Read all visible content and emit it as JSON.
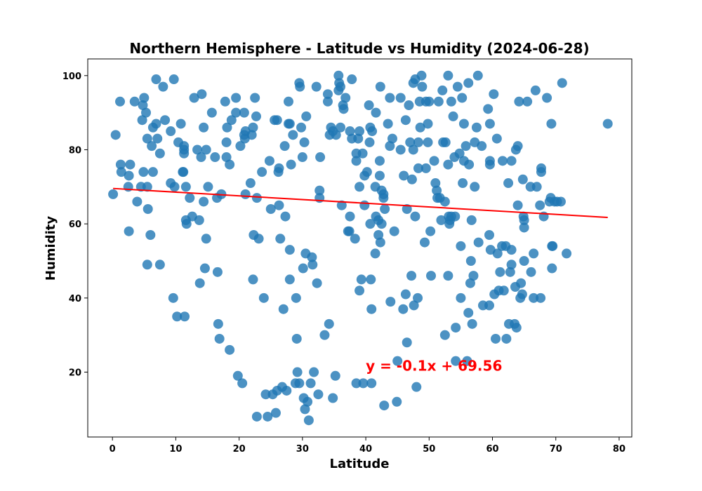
{
  "chart_data": {
    "type": "scatter",
    "title": "Northern Hemisphere - Latitude vs Humidity (2024-06-28)",
    "xlabel": "Latitude",
    "ylabel": "Humidity",
    "xlim": [
      -3.9,
      82
    ],
    "ylim": [
      2.5,
      104.5
    ],
    "xticks": [
      0,
      10,
      20,
      30,
      40,
      50,
      60,
      70,
      80
    ],
    "yticks": [
      20,
      40,
      60,
      80,
      100
    ],
    "grid": false,
    "marker_color": "#1f77b4",
    "regression": {
      "slope": -0.1,
      "intercept": 69.56,
      "x_range": [
        0.1,
        78.2
      ],
      "color": "#ff0000",
      "equation": "y = -0.1x + 69.56",
      "equation_x": 40,
      "equation_y": 20
    },
    "points": [
      [
        0.1,
        68
      ],
      [
        0.5,
        84
      ],
      [
        1.2,
        93
      ],
      [
        1.3,
        76
      ],
      [
        1.4,
        74
      ],
      [
        2.5,
        70
      ],
      [
        2.6,
        73
      ],
      [
        2.8,
        76
      ],
      [
        2.6,
        58
      ],
      [
        3.5,
        93
      ],
      [
        3.9,
        66
      ],
      [
        4.5,
        70
      ],
      [
        4.8,
        92
      ],
      [
        4.9,
        74
      ],
      [
        4.7,
        88
      ],
      [
        5.0,
        94
      ],
      [
        5.3,
        90
      ],
      [
        5.5,
        83
      ],
      [
        5.5,
        70
      ],
      [
        5.6,
        64
      ],
      [
        5.5,
        49
      ],
      [
        6.0,
        57
      ],
      [
        6.2,
        81
      ],
      [
        6.4,
        86
      ],
      [
        6.4,
        74
      ],
      [
        6.9,
        99
      ],
      [
        6.9,
        87
      ],
      [
        7.1,
        83
      ],
      [
        7.5,
        79
      ],
      [
        7.5,
        49
      ],
      [
        8.0,
        97
      ],
      [
        8.3,
        88
      ],
      [
        9.2,
        71
      ],
      [
        9.2,
        85
      ],
      [
        9.6,
        40
      ],
      [
        9.7,
        99
      ],
      [
        9.8,
        70
      ],
      [
        10.2,
        35
      ],
      [
        10.4,
        82
      ],
      [
        10.8,
        87
      ],
      [
        11.1,
        74
      ],
      [
        11.2,
        74
      ],
      [
        11.3,
        80
      ],
      [
        11.3,
        81
      ],
      [
        11.3,
        79
      ],
      [
        11.4,
        35
      ],
      [
        11.6,
        61
      ],
      [
        11.6,
        70
      ],
      [
        11.7,
        60
      ],
      [
        12.2,
        67
      ],
      [
        12.6,
        62
      ],
      [
        12.9,
        94
      ],
      [
        13.4,
        80
      ],
      [
        13.7,
        61
      ],
      [
        13.8,
        44
      ],
      [
        14.1,
        95
      ],
      [
        14.0,
        78
      ],
      [
        14.4,
        86
      ],
      [
        14.4,
        66
      ],
      [
        14.6,
        48
      ],
      [
        14.8,
        56
      ],
      [
        14.8,
        80
      ],
      [
        15.1,
        70
      ],
      [
        15.7,
        90
      ],
      [
        16.2,
        78
      ],
      [
        16.5,
        67
      ],
      [
        16.6,
        47
      ],
      [
        16.7,
        33
      ],
      [
        16.9,
        29
      ],
      [
        17.2,
        68
      ],
      [
        17.8,
        93
      ],
      [
        18.0,
        82
      ],
      [
        18.0,
        78
      ],
      [
        18.1,
        86
      ],
      [
        18.5,
        76
      ],
      [
        18.5,
        26
      ],
      [
        18.8,
        88
      ],
      [
        19.5,
        94
      ],
      [
        19.5,
        90
      ],
      [
        19.8,
        19
      ],
      [
        20.2,
        81
      ],
      [
        20.5,
        17
      ],
      [
        20.8,
        90
      ],
      [
        20.8,
        84
      ],
      [
        20.9,
        83
      ],
      [
        21.0,
        85
      ],
      [
        21.0,
        68
      ],
      [
        21.8,
        71
      ],
      [
        22.0,
        84
      ],
      [
        22.2,
        86
      ],
      [
        22.3,
        57
      ],
      [
        22.2,
        45
      ],
      [
        22.5,
        94
      ],
      [
        22.7,
        89
      ],
      [
        22.8,
        67
      ],
      [
        22.8,
        8
      ],
      [
        23.1,
        56
      ],
      [
        23.6,
        74
      ],
      [
        23.9,
        40
      ],
      [
        24.2,
        14
      ],
      [
        24.5,
        8
      ],
      [
        24.8,
        77
      ],
      [
        25.0,
        64
      ],
      [
        25.3,
        14
      ],
      [
        25.6,
        88
      ],
      [
        25.8,
        9
      ],
      [
        26.0,
        15
      ],
      [
        26.0,
        88
      ],
      [
        26.2,
        74
      ],
      [
        26.3,
        65
      ],
      [
        26.3,
        75
      ],
      [
        26.5,
        56
      ],
      [
        26.8,
        16
      ],
      [
        27.0,
        37
      ],
      [
        27.2,
        81
      ],
      [
        27.3,
        62
      ],
      [
        27.5,
        15
      ],
      [
        27.8,
        93
      ],
      [
        27.8,
        87
      ],
      [
        28.0,
        87
      ],
      [
        28.0,
        53
      ],
      [
        28.0,
        45
      ],
      [
        28.2,
        76
      ],
      [
        28.5,
        84
      ],
      [
        28.9,
        17
      ],
      [
        29.0,
        40
      ],
      [
        29.1,
        29
      ],
      [
        29.2,
        20
      ],
      [
        29.5,
        17
      ],
      [
        29.5,
        98
      ],
      [
        29.6,
        97
      ],
      [
        29.8,
        86
      ],
      [
        30.0,
        78
      ],
      [
        30.1,
        48
      ],
      [
        30.2,
        13
      ],
      [
        30.3,
        82
      ],
      [
        30.4,
        10
      ],
      [
        30.5,
        52
      ],
      [
        30.6,
        89
      ],
      [
        30.8,
        12
      ],
      [
        31.0,
        7
      ],
      [
        31.3,
        17
      ],
      [
        31.5,
        51
      ],
      [
        31.6,
        49
      ],
      [
        31.8,
        20
      ],
      [
        32.2,
        97
      ],
      [
        32.3,
        44
      ],
      [
        32.5,
        14
      ],
      [
        32.7,
        67
      ],
      [
        32.7,
        69
      ],
      [
        32.8,
        78
      ],
      [
        33.5,
        30
      ],
      [
        34.0,
        95
      ],
      [
        34.0,
        93
      ],
      [
        34.2,
        33
      ],
      [
        34.3,
        84
      ],
      [
        34.5,
        86
      ],
      [
        34.8,
        13
      ],
      [
        34.8,
        85
      ],
      [
        35.2,
        19
      ],
      [
        35.3,
        84
      ],
      [
        35.7,
        96
      ],
      [
        35.7,
        100
      ],
      [
        35.8,
        98
      ],
      [
        36.0,
        97
      ],
      [
        36.0,
        86
      ],
      [
        36.2,
        65
      ],
      [
        36.4,
        92
      ],
      [
        36.5,
        91
      ],
      [
        36.8,
        94
      ],
      [
        37.2,
        58
      ],
      [
        37.4,
        58
      ],
      [
        37.5,
        85
      ],
      [
        37.5,
        62
      ],
      [
        37.8,
        83
      ],
      [
        37.8,
        99
      ],
      [
        38.3,
        56
      ],
      [
        38.5,
        79
      ],
      [
        38.5,
        77
      ],
      [
        38.5,
        17
      ],
      [
        38.8,
        83
      ],
      [
        39.0,
        85
      ],
      [
        39.0,
        70
      ],
      [
        39.0,
        42
      ],
      [
        39.3,
        45
      ],
      [
        39.5,
        79
      ],
      [
        39.6,
        17
      ],
      [
        39.8,
        73
      ],
      [
        39.8,
        65
      ],
      [
        40.2,
        74
      ],
      [
        40.5,
        92
      ],
      [
        40.6,
        82
      ],
      [
        40.7,
        86
      ],
      [
        40.7,
        60
      ],
      [
        40.8,
        45
      ],
      [
        40.9,
        37
      ],
      [
        40.9,
        17
      ],
      [
        41.0,
        85
      ],
      [
        41.5,
        70
      ],
      [
        41.5,
        52
      ],
      [
        41.6,
        62
      ],
      [
        41.6,
        90
      ],
      [
        42.0,
        61
      ],
      [
        42.0,
        57
      ],
      [
        42.2,
        73
      ],
      [
        42.2,
        77
      ],
      [
        42.3,
        97
      ],
      [
        42.3,
        55
      ],
      [
        42.5,
        60
      ],
      [
        42.5,
        69
      ],
      [
        42.8,
        68
      ],
      [
        42.8,
        67
      ],
      [
        43.0,
        64
      ],
      [
        42.9,
        11
      ],
      [
        43.5,
        87
      ],
      [
        43.8,
        94
      ],
      [
        43.8,
        81
      ],
      [
        43.9,
        39
      ],
      [
        44.2,
        83
      ],
      [
        44.5,
        58
      ],
      [
        44.9,
        12
      ],
      [
        45.0,
        23
      ],
      [
        45.5,
        94
      ],
      [
        45.5,
        80
      ],
      [
        45.9,
        37
      ],
      [
        46.0,
        73
      ],
      [
        46.3,
        88
      ],
      [
        46.3,
        41
      ],
      [
        46.5,
        64
      ],
      [
        46.5,
        28
      ],
      [
        46.8,
        92
      ],
      [
        47.0,
        82
      ],
      [
        47.2,
        46
      ],
      [
        47.3,
        72
      ],
      [
        47.5,
        80
      ],
      [
        47.5,
        98
      ],
      [
        47.6,
        38
      ],
      [
        47.8,
        99
      ],
      [
        47.8,
        62
      ],
      [
        48.0,
        16
      ],
      [
        48.2,
        40
      ],
      [
        48.3,
        82
      ],
      [
        48.3,
        75
      ],
      [
        48.5,
        93
      ],
      [
        48.6,
        86
      ],
      [
        48.8,
        100
      ],
      [
        48.9,
        97
      ],
      [
        49.3,
        55
      ],
      [
        49.5,
        93
      ],
      [
        49.5,
        75
      ],
      [
        49.8,
        82
      ],
      [
        49.8,
        87
      ],
      [
        50.0,
        93
      ],
      [
        50.2,
        58
      ],
      [
        50.3,
        46
      ],
      [
        50.8,
        77
      ],
      [
        51.0,
        71
      ],
      [
        51.2,
        69
      ],
      [
        51.3,
        67
      ],
      [
        51.5,
        93
      ],
      [
        51.7,
        67
      ],
      [
        51.9,
        61
      ],
      [
        52.1,
        96
      ],
      [
        52.2,
        82
      ],
      [
        52.5,
        66
      ],
      [
        52.5,
        30
      ],
      [
        52.6,
        82
      ],
      [
        53.0,
        46
      ],
      [
        53.0,
        100
      ],
      [
        53.0,
        76
      ],
      [
        53.1,
        62
      ],
      [
        53.2,
        60
      ],
      [
        53.3,
        61
      ],
      [
        53.5,
        93
      ],
      [
        53.5,
        62
      ],
      [
        53.8,
        89
      ],
      [
        54.0,
        78
      ],
      [
        54.1,
        62
      ],
      [
        54.2,
        32
      ],
      [
        54.2,
        23
      ],
      [
        54.5,
        97
      ],
      [
        54.8,
        79
      ],
      [
        55.0,
        54
      ],
      [
        55.0,
        40
      ],
      [
        55.2,
        94
      ],
      [
        55.3,
        71
      ],
      [
        55.5,
        87
      ],
      [
        55.5,
        77
      ],
      [
        55.8,
        81
      ],
      [
        56.0,
        23
      ],
      [
        56.2,
        36
      ],
      [
        56.2,
        98
      ],
      [
        56.3,
        76
      ],
      [
        56.6,
        50
      ],
      [
        56.5,
        44
      ],
      [
        56.7,
        61
      ],
      [
        56.8,
        33
      ],
      [
        57.0,
        46
      ],
      [
        57.2,
        82
      ],
      [
        57.2,
        70
      ],
      [
        57.5,
        86
      ],
      [
        57.7,
        100
      ],
      [
        57.8,
        55
      ],
      [
        58.3,
        81
      ],
      [
        58.5,
        38
      ],
      [
        59.3,
        91
      ],
      [
        59.5,
        57
      ],
      [
        59.5,
        38
      ],
      [
        59.6,
        87
      ],
      [
        59.6,
        77
      ],
      [
        59.6,
        76
      ],
      [
        59.7,
        53
      ],
      [
        60.2,
        95
      ],
      [
        60.3,
        41
      ],
      [
        60.5,
        29
      ],
      [
        60.7,
        83
      ],
      [
        60.8,
        52
      ],
      [
        61.0,
        42
      ],
      [
        61.2,
        47
      ],
      [
        61.5,
        54
      ],
      [
        61.6,
        77
      ],
      [
        61.8,
        42
      ],
      [
        62.1,
        54
      ],
      [
        62.2,
        29
      ],
      [
        62.5,
        71
      ],
      [
        62.6,
        33
      ],
      [
        62.8,
        47
      ],
      [
        63.0,
        49
      ],
      [
        63.0,
        53
      ],
      [
        63.0,
        77
      ],
      [
        63.5,
        33
      ],
      [
        63.6,
        43
      ],
      [
        63.7,
        80
      ],
      [
        63.8,
        32
      ],
      [
        64.0,
        65
      ],
      [
        64.0,
        81
      ],
      [
        64.2,
        93
      ],
      [
        64.4,
        40
      ],
      [
        64.5,
        44
      ],
      [
        64.7,
        41
      ],
      [
        64.8,
        72
      ],
      [
        64.9,
        62
      ],
      [
        65.0,
        61
      ],
      [
        65.0,
        59
      ],
      [
        65.0,
        50
      ],
      [
        65.5,
        93
      ],
      [
        66.0,
        70
      ],
      [
        66.1,
        47
      ],
      [
        66.5,
        52
      ],
      [
        66.5,
        40
      ],
      [
        66.8,
        96
      ],
      [
        67.0,
        70
      ],
      [
        67.5,
        65
      ],
      [
        67.6,
        40
      ],
      [
        67.7,
        74
      ],
      [
        67.7,
        75
      ],
      [
        68.1,
        62
      ],
      [
        68.6,
        94
      ],
      [
        69.0,
        66
      ],
      [
        69.2,
        67
      ],
      [
        69.3,
        87
      ],
      [
        69.4,
        54
      ],
      [
        69.5,
        54
      ],
      [
        69.4,
        48
      ],
      [
        69.8,
        66
      ],
      [
        70.2,
        66
      ],
      [
        70.8,
        66
      ],
      [
        71.0,
        98
      ],
      [
        71.7,
        52
      ],
      [
        78.2,
        87
      ]
    ]
  }
}
